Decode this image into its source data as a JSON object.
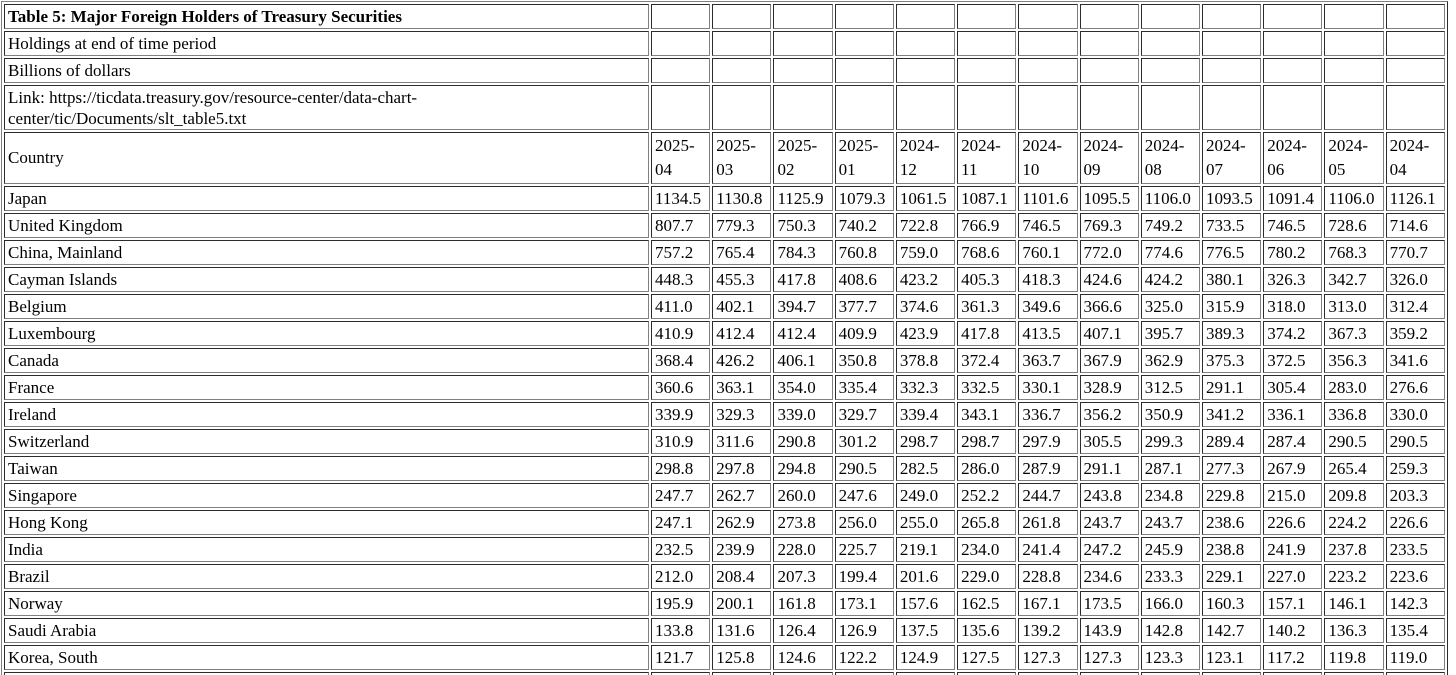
{
  "table": {
    "title": "Table 5: Major Foreign Holders of Treasury Securities",
    "subtitle_holdings": "Holdings at end of time period",
    "subtitle_units": "Billions of dollars",
    "link_text": "Link: https://ticdata.treasury.gov/resource-center/data-chart-center/tic/Documents/slt_table5.txt",
    "country_header": "Country",
    "periods": [
      "2025-04",
      "2025-03",
      "2025-02",
      "2025-01",
      "2024-12",
      "2024-11",
      "2024-10",
      "2024-09",
      "2024-08",
      "2024-07",
      "2024-06",
      "2024-05",
      "2024-04"
    ],
    "rows": [
      {
        "country": "Japan",
        "values": [
          "1134.5",
          "1130.8",
          "1125.9",
          "1079.3",
          "1061.5",
          "1087.1",
          "1101.6",
          "1095.5",
          "1106.0",
          "1093.5",
          "1091.4",
          "1106.0",
          "1126.1"
        ]
      },
      {
        "country": "United Kingdom",
        "values": [
          "807.7",
          "779.3",
          "750.3",
          "740.2",
          "722.8",
          "766.9",
          "746.5",
          "769.3",
          "749.2",
          "733.5",
          "746.5",
          "728.6",
          "714.6"
        ]
      },
      {
        "country": "China, Mainland",
        "values": [
          "757.2",
          "765.4",
          "784.3",
          "760.8",
          "759.0",
          "768.6",
          "760.1",
          "772.0",
          "774.6",
          "776.5",
          "780.2",
          "768.3",
          "770.7"
        ]
      },
      {
        "country": "Cayman Islands",
        "values": [
          "448.3",
          "455.3",
          "417.8",
          "408.6",
          "423.2",
          "405.3",
          "418.3",
          "424.6",
          "424.2",
          "380.1",
          "326.3",
          "342.7",
          "326.0"
        ]
      },
      {
        "country": "Belgium",
        "values": [
          "411.0",
          "402.1",
          "394.7",
          "377.7",
          "374.6",
          "361.3",
          "349.6",
          "366.6",
          "325.0",
          "315.9",
          "318.0",
          "313.0",
          "312.4"
        ]
      },
      {
        "country": "Luxembourg",
        "values": [
          "410.9",
          "412.4",
          "412.4",
          "409.9",
          "423.9",
          "417.8",
          "413.5",
          "407.1",
          "395.7",
          "389.3",
          "374.2",
          "367.3",
          "359.2"
        ]
      },
      {
        "country": "Canada",
        "values": [
          "368.4",
          "426.2",
          "406.1",
          "350.8",
          "378.8",
          "372.4",
          "363.7",
          "367.9",
          "362.9",
          "375.3",
          "372.5",
          "356.3",
          "341.6"
        ]
      },
      {
        "country": "France",
        "values": [
          "360.6",
          "363.1",
          "354.0",
          "335.4",
          "332.3",
          "332.5",
          "330.1",
          "328.9",
          "312.5",
          "291.1",
          "305.4",
          "283.0",
          "276.6"
        ]
      },
      {
        "country": "Ireland",
        "values": [
          "339.9",
          "329.3",
          "339.0",
          "329.7",
          "339.4",
          "343.1",
          "336.7",
          "356.2",
          "350.9",
          "341.2",
          "336.1",
          "336.8",
          "330.0"
        ]
      },
      {
        "country": "Switzerland",
        "values": [
          "310.9",
          "311.6",
          "290.8",
          "301.2",
          "298.7",
          "298.7",
          "297.9",
          "305.5",
          "299.3",
          "289.4",
          "287.4",
          "290.5",
          "290.5"
        ]
      },
      {
        "country": "Taiwan",
        "values": [
          "298.8",
          "297.8",
          "294.8",
          "290.5",
          "282.5",
          "286.0",
          "287.9",
          "291.1",
          "287.1",
          "277.3",
          "267.9",
          "265.4",
          "259.3"
        ]
      },
      {
        "country": "Singapore",
        "values": [
          "247.7",
          "262.7",
          "260.0",
          "247.6",
          "249.0",
          "252.2",
          "244.7",
          "243.8",
          "234.8",
          "229.8",
          "215.0",
          "209.8",
          "203.3"
        ]
      },
      {
        "country": "Hong Kong",
        "values": [
          "247.1",
          "262.9",
          "273.8",
          "256.0",
          "255.0",
          "265.8",
          "261.8",
          "243.7",
          "243.7",
          "238.6",
          "226.6",
          "224.2",
          "226.6"
        ]
      },
      {
        "country": "India",
        "values": [
          "232.5",
          "239.9",
          "228.0",
          "225.7",
          "219.1",
          "234.0",
          "241.4",
          "247.2",
          "245.9",
          "238.8",
          "241.9",
          "237.8",
          "233.5"
        ]
      },
      {
        "country": "Brazil",
        "values": [
          "212.0",
          "208.4",
          "207.3",
          "199.4",
          "201.6",
          "229.0",
          "228.8",
          "234.6",
          "233.3",
          "229.1",
          "227.0",
          "223.2",
          "223.6"
        ]
      },
      {
        "country": "Norway",
        "values": [
          "195.9",
          "200.1",
          "161.8",
          "173.1",
          "157.6",
          "162.5",
          "167.1",
          "173.5",
          "166.0",
          "160.3",
          "157.1",
          "146.1",
          "142.3"
        ]
      },
      {
        "country": "Saudi Arabia",
        "values": [
          "133.8",
          "131.6",
          "126.4",
          "126.9",
          "137.5",
          "135.6",
          "139.2",
          "143.9",
          "142.8",
          "142.7",
          "140.2",
          "136.3",
          "135.4"
        ]
      },
      {
        "country": "Korea, South",
        "values": [
          "121.7",
          "125.8",
          "124.6",
          "122.2",
          "124.9",
          "127.5",
          "127.3",
          "127.3",
          "123.3",
          "123.1",
          "117.2",
          "119.8",
          "119.0"
        ]
      }
    ]
  }
}
